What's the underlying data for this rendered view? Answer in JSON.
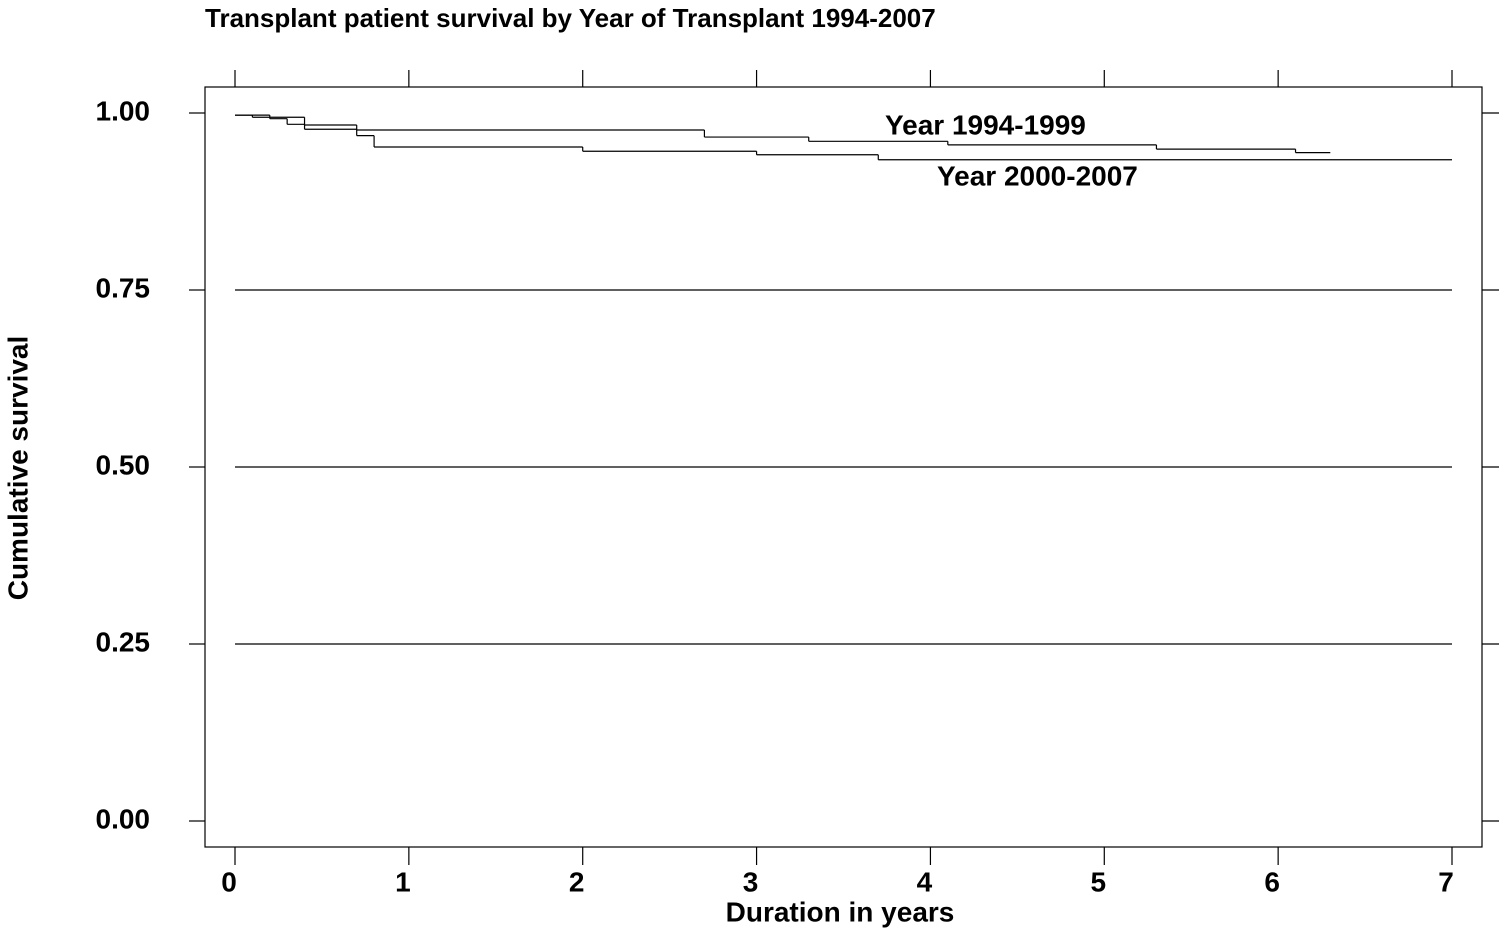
{
  "chart_data": {
    "type": "step",
    "title": "Transplant patient survival by Year of Transplant 1994-2007",
    "x_label": "Duration in years",
    "y_label": "Cumulative survival",
    "xlim": [
      0,
      7
    ],
    "ylim": [
      0,
      1
    ],
    "xticks": [
      0,
      1,
      2,
      3,
      4,
      5,
      6,
      7
    ],
    "yticks": [
      {
        "value": 0,
        "label": "0.00"
      },
      {
        "value": 0.25,
        "label": "0.25"
      },
      {
        "value": 0.5,
        "label": "0.50"
      },
      {
        "value": 0.75,
        "label": "0.75"
      },
      {
        "value": 1,
        "label": "1.00"
      }
    ],
    "grid": true,
    "series": [
      {
        "name": "Year 1994-1999",
        "color": "#000000",
        "x": [
          0,
          0.1,
          0.4,
          0.7,
          2.7,
          3.3,
          4.1,
          5.3,
          6.1,
          6.3
        ],
        "values": [
          0.997,
          0.994,
          0.983,
          0.976,
          0.966,
          0.96,
          0.955,
          0.949,
          0.944,
          0.944
        ]
      },
      {
        "name": "Year 2000-2007",
        "color": "#000000",
        "x": [
          0,
          0.2,
          0.3,
          0.4,
          0.7,
          0.8,
          2.0,
          3.0,
          3.7,
          7.0
        ],
        "values": [
          0.997,
          0.992,
          0.984,
          0.977,
          0.968,
          0.952,
          0.946,
          0.941,
          0.934,
          0.934
        ]
      }
    ]
  }
}
